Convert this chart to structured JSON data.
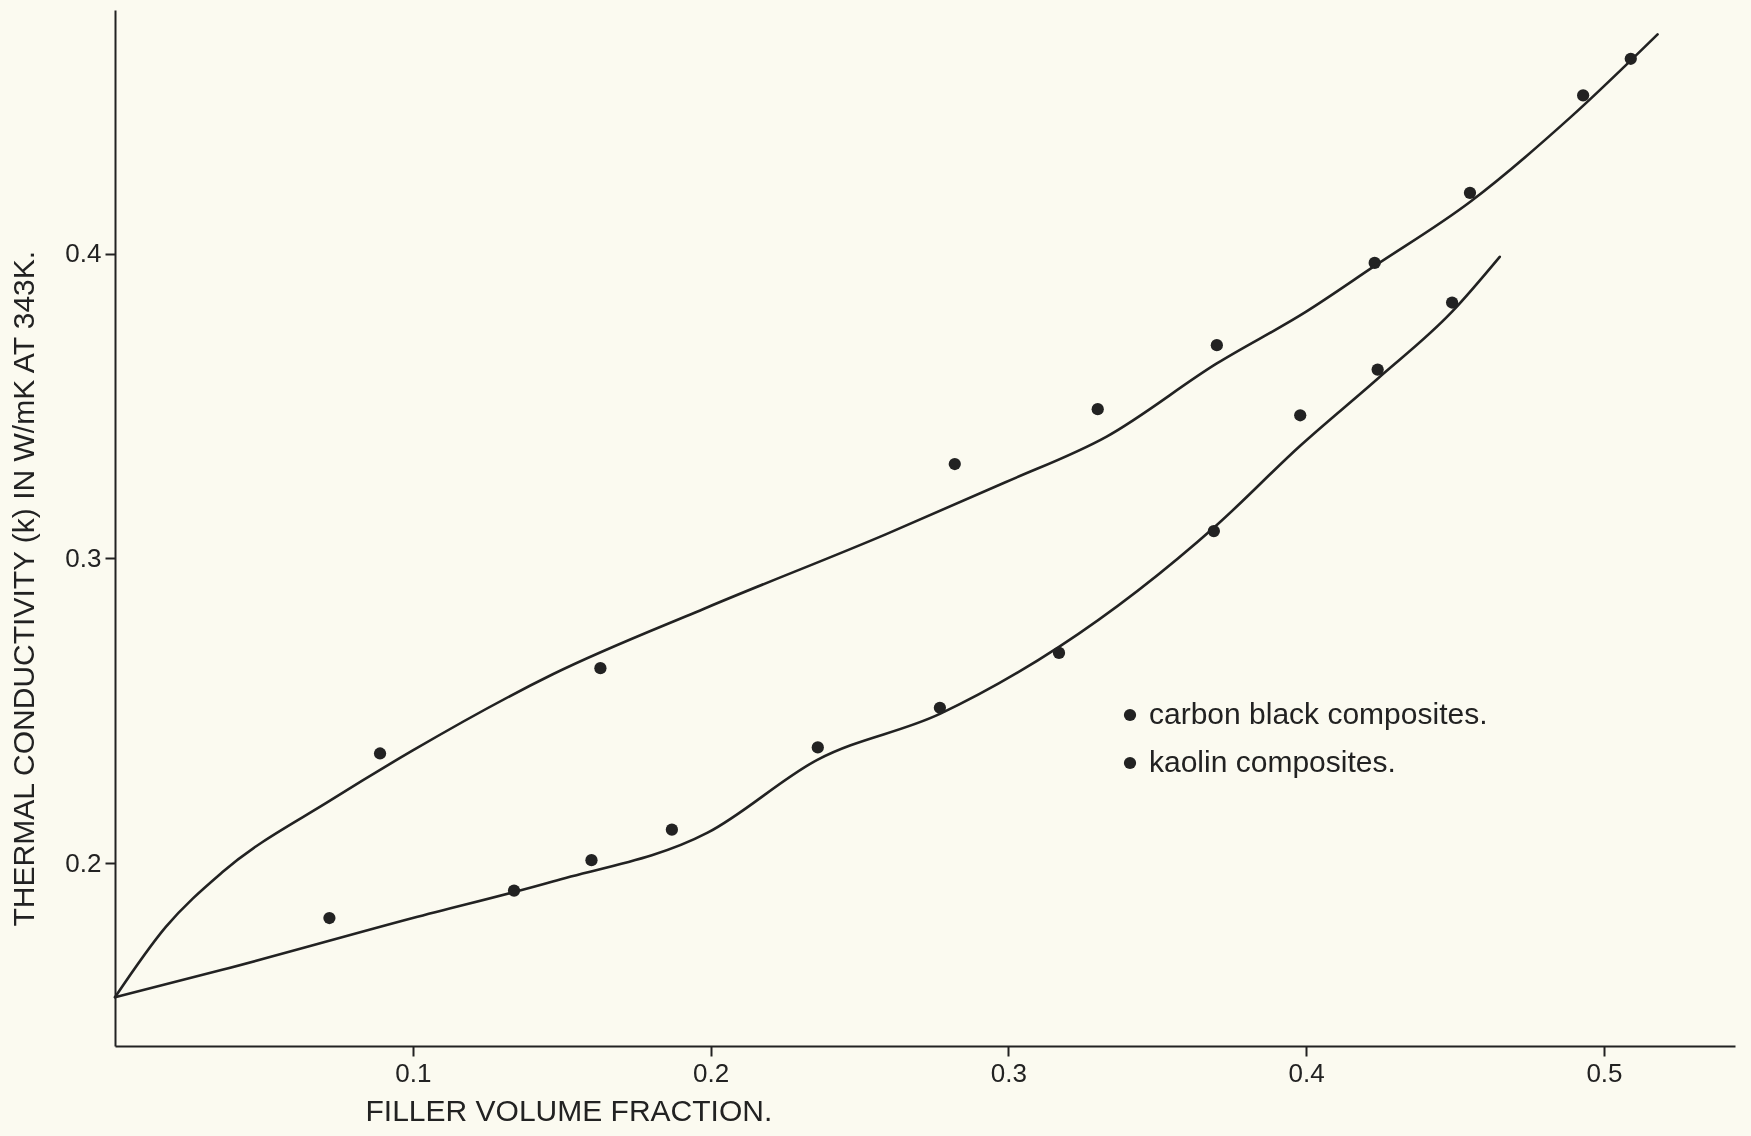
{
  "chart_data": {
    "type": "scatter",
    "xlabel": "FILLER VOLUME FRACTION.",
    "ylabel": "THERMAL CONDUCTIVITY (k) IN W/mK AT 343K.",
    "xlim": [
      0,
      0.544
    ],
    "ylim": [
      0.14,
      0.48
    ],
    "xticks": [
      0.1,
      0.2,
      0.3,
      0.4,
      0.5
    ],
    "yticks": [
      0.2,
      0.3,
      0.4
    ],
    "grid": false,
    "legend": "right",
    "series": [
      {
        "name": "carbon black composites.",
        "color": "#222222",
        "x": [
          0.089,
          0.163,
          0.282,
          0.33,
          0.37,
          0.423,
          0.455,
          0.493,
          0.509
        ],
        "values": [
          0.236,
          0.264,
          0.331,
          0.349,
          0.37,
          0.397,
          0.42,
          0.452,
          0.464
        ]
      },
      {
        "name": "kaolin composites.",
        "color": "#222222",
        "x": [
          0.072,
          0.134,
          0.16,
          0.187,
          0.236,
          0.277,
          0.317,
          0.369,
          0.398,
          0.424,
          0.449
        ],
        "values": [
          0.182,
          0.191,
          0.201,
          0.211,
          0.238,
          0.251,
          0.269,
          0.309,
          0.347,
          0.362,
          0.384
        ]
      },
      {
        "type": "line",
        "color": "#222222",
        "x": [
          0,
          0.017,
          0.036,
          0.073,
          0.1,
          0.147,
          0.199,
          0.259,
          0.299,
          0.333,
          0.37,
          0.4,
          0.423,
          0.455,
          0.489,
          0.518
        ],
        "values": [
          0.156,
          0.179,
          0.197,
          0.221,
          0.237,
          0.262,
          0.284,
          0.308,
          0.325,
          0.34,
          0.364,
          0.381,
          0.396,
          0.417,
          0.445,
          0.472
        ]
      },
      {
        "type": "line",
        "color": "#222222",
        "x": [
          0,
          0.036,
          0.1,
          0.147,
          0.199,
          0.236,
          0.277,
          0.317,
          0.37,
          0.398,
          0.424,
          0.449,
          0.465
        ],
        "values": [
          0.156,
          0.165,
          0.182,
          0.194,
          0.21,
          0.234,
          0.249,
          0.271,
          0.311,
          0.337,
          0.359,
          0.381,
          0.399
        ]
      }
    ]
  }
}
